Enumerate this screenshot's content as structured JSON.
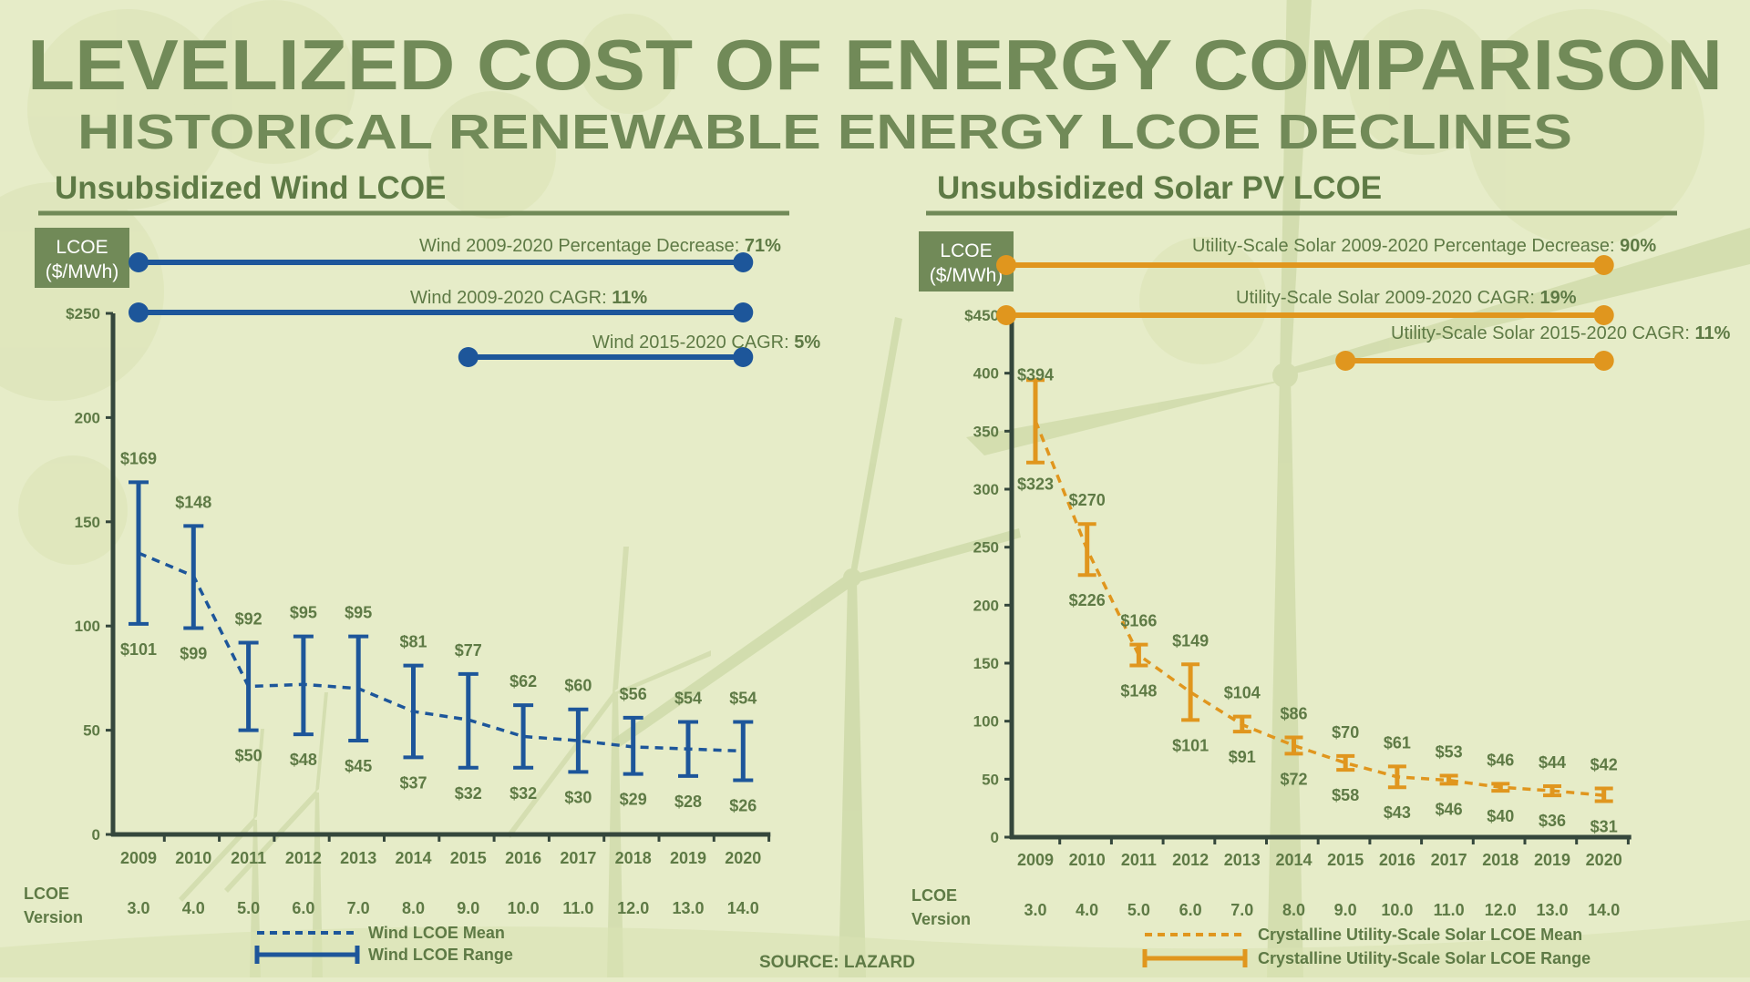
{
  "title": "LEVELIZED COST OF ENERGY COMPARISON",
  "subtitle": "HISTORICAL RENEWABLE ENERGY LCOE DECLINES",
  "source": "SOURCE: LAZARD",
  "version_label_line1": "LCOE",
  "version_label_line2": "Version",
  "colors": {
    "title": "#718a58",
    "text": "#5e7a45",
    "wind": "#1d569a",
    "solar": "#e0961e",
    "axis": "#35473c",
    "badge": "#718a58",
    "rule": "#718a58",
    "background": "#e6ecc8"
  },
  "icons": [
    "wind-turbine-watermark"
  ],
  "chart_data": [
    {
      "id": "wind",
      "type": "line",
      "title": "Unsubsidized Wind LCOE",
      "ylabel_line1": "LCOE",
      "ylabel_line2": "($/MWh)",
      "ylim": [
        0,
        250
      ],
      "yticks": [
        0,
        50,
        100,
        150,
        200,
        250
      ],
      "yticklabels": [
        "0",
        "50",
        "100",
        "150",
        "200",
        "$250"
      ],
      "categories": [
        "2009",
        "2010",
        "2011",
        "2012",
        "2013",
        "2014",
        "2015",
        "2016",
        "2017",
        "2018",
        "2019",
        "2020"
      ],
      "versions": [
        "3.0",
        "4.0",
        "5.0",
        "6.0",
        "7.0",
        "8.0",
        "9.0",
        "10.0",
        "11.0",
        "12.0",
        "13.0",
        "14.0"
      ],
      "high": [
        169,
        148,
        92,
        95,
        95,
        81,
        77,
        62,
        60,
        56,
        54,
        54
      ],
      "low": [
        101,
        99,
        50,
        48,
        45,
        37,
        32,
        32,
        30,
        29,
        28,
        26
      ],
      "high_labels": [
        "$169",
        "$148",
        "$92",
        "$95",
        "$95",
        "$81",
        "$77",
        "$62",
        "$60",
        "$56",
        "$54",
        "$54"
      ],
      "low_labels": [
        "$101",
        "$99",
        "$50",
        "$48",
        "$45",
        "$37",
        "$32",
        "$32",
        "$30",
        "$29",
        "$28",
        "$26"
      ],
      "mean": [
        135,
        124,
        71,
        72,
        70,
        59,
        55,
        47,
        45,
        42,
        41,
        40
      ],
      "annotations": [
        {
          "text": "Wind 2009-2020 Percentage Decrease: ",
          "bold": "71%",
          "from": "2009",
          "to": "2020"
        },
        {
          "text": "Wind 2009-2020 CAGR: ",
          "bold": "11%",
          "from": "2009",
          "to": "2020"
        },
        {
          "text": "Wind 2015-2020 CAGR: ",
          "bold": "5%",
          "from": "2015",
          "to": "2020"
        }
      ],
      "legend": {
        "mean": "Wind LCOE Mean",
        "range": "Wind LCOE Range"
      }
    },
    {
      "id": "solar",
      "type": "line",
      "title": "Unsubsidized Solar PV LCOE",
      "ylabel_line1": "LCOE",
      "ylabel_line2": "($/MWh)",
      "ylim": [
        0,
        450
      ],
      "yticks": [
        0,
        50,
        100,
        150,
        200,
        250,
        300,
        350,
        400,
        450
      ],
      "yticklabels": [
        "0",
        "50",
        "100",
        "150",
        "200",
        "250",
        "300",
        "350",
        "400",
        "$450"
      ],
      "categories": [
        "2009",
        "2010",
        "2011",
        "2012",
        "2013",
        "2014",
        "2015",
        "2016",
        "2017",
        "2018",
        "2019",
        "2020"
      ],
      "versions": [
        "3.0",
        "4.0",
        "5.0",
        "6.0",
        "7.0",
        "8.0",
        "9.0",
        "10.0",
        "11.0",
        "12.0",
        "13.0",
        "14.0"
      ],
      "high": [
        394,
        270,
        166,
        149,
        104,
        86,
        70,
        61,
        53,
        46,
        44,
        42
      ],
      "low": [
        323,
        226,
        148,
        101,
        91,
        72,
        58,
        43,
        46,
        40,
        36,
        31
      ],
      "high_labels": [
        "$394",
        "$270",
        "$166",
        "$149",
        "$104",
        "$86",
        "$70",
        "$61",
        "$53",
        "$46",
        "$44",
        "$42"
      ],
      "low_labels": [
        "$323",
        "$226",
        "$148",
        "$101",
        "$91",
        "$72",
        "$58",
        "$43",
        "$46",
        "$40",
        "$36",
        "$31"
      ],
      "mean": [
        359,
        248,
        157,
        125,
        97,
        79,
        64,
        52,
        49,
        43,
        40,
        36
      ],
      "annotations": [
        {
          "text": "Utility-Scale Solar  2009-2020 Percentage Decrease: ",
          "bold": "90%",
          "from": "2009",
          "to": "2020"
        },
        {
          "text": "Utility-Scale Solar 2009-2020 CAGR: ",
          "bold": "19%",
          "from": "2009",
          "to": "2020"
        },
        {
          "text": "Utility-Scale Solar 2015-2020 CAGR: ",
          "bold": "11%",
          "from": "2015",
          "to": "2020"
        }
      ],
      "legend": {
        "mean": "Crystalline Utility-Scale Solar LCOE Mean",
        "range": "Crystalline Utility-Scale Solar LCOE Range"
      }
    }
  ]
}
